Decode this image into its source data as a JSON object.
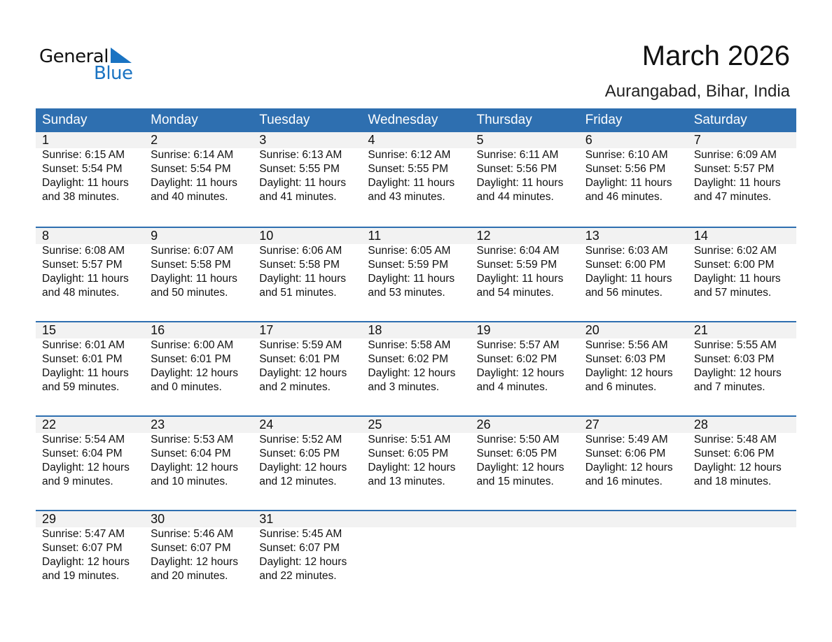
{
  "logo": {
    "general": "General",
    "blue": "Blue"
  },
  "header": {
    "title": "March 2026",
    "location": "Aurangabad, Bihar, India"
  },
  "colors": {
    "accent": "#2e6fb0",
    "band": "#f2f2f2"
  },
  "days": [
    "Sunday",
    "Monday",
    "Tuesday",
    "Wednesday",
    "Thursday",
    "Friday",
    "Saturday"
  ],
  "weeks": [
    [
      {
        "d": "1",
        "rise": "Sunrise: 6:15 AM",
        "set": "Sunset: 5:54 PM",
        "day1": "Daylight: 11 hours",
        "day2": "and 38 minutes."
      },
      {
        "d": "2",
        "rise": "Sunrise: 6:14 AM",
        "set": "Sunset: 5:54 PM",
        "day1": "Daylight: 11 hours",
        "day2": "and 40 minutes."
      },
      {
        "d": "3",
        "rise": "Sunrise: 6:13 AM",
        "set": "Sunset: 5:55 PM",
        "day1": "Daylight: 11 hours",
        "day2": "and 41 minutes."
      },
      {
        "d": "4",
        "rise": "Sunrise: 6:12 AM",
        "set": "Sunset: 5:55 PM",
        "day1": "Daylight: 11 hours",
        "day2": "and 43 minutes."
      },
      {
        "d": "5",
        "rise": "Sunrise: 6:11 AM",
        "set": "Sunset: 5:56 PM",
        "day1": "Daylight: 11 hours",
        "day2": "and 44 minutes."
      },
      {
        "d": "6",
        "rise": "Sunrise: 6:10 AM",
        "set": "Sunset: 5:56 PM",
        "day1": "Daylight: 11 hours",
        "day2": "and 46 minutes."
      },
      {
        "d": "7",
        "rise": "Sunrise: 6:09 AM",
        "set": "Sunset: 5:57 PM",
        "day1": "Daylight: 11 hours",
        "day2": "and 47 minutes."
      }
    ],
    [
      {
        "d": "8",
        "rise": "Sunrise: 6:08 AM",
        "set": "Sunset: 5:57 PM",
        "day1": "Daylight: 11 hours",
        "day2": "and 48 minutes."
      },
      {
        "d": "9",
        "rise": "Sunrise: 6:07 AM",
        "set": "Sunset: 5:58 PM",
        "day1": "Daylight: 11 hours",
        "day2": "and 50 minutes."
      },
      {
        "d": "10",
        "rise": "Sunrise: 6:06 AM",
        "set": "Sunset: 5:58 PM",
        "day1": "Daylight: 11 hours",
        "day2": "and 51 minutes."
      },
      {
        "d": "11",
        "rise": "Sunrise: 6:05 AM",
        "set": "Sunset: 5:59 PM",
        "day1": "Daylight: 11 hours",
        "day2": "and 53 minutes."
      },
      {
        "d": "12",
        "rise": "Sunrise: 6:04 AM",
        "set": "Sunset: 5:59 PM",
        "day1": "Daylight: 11 hours",
        "day2": "and 54 minutes."
      },
      {
        "d": "13",
        "rise": "Sunrise: 6:03 AM",
        "set": "Sunset: 6:00 PM",
        "day1": "Daylight: 11 hours",
        "day2": "and 56 minutes."
      },
      {
        "d": "14",
        "rise": "Sunrise: 6:02 AM",
        "set": "Sunset: 6:00 PM",
        "day1": "Daylight: 11 hours",
        "day2": "and 57 minutes."
      }
    ],
    [
      {
        "d": "15",
        "rise": "Sunrise: 6:01 AM",
        "set": "Sunset: 6:01 PM",
        "day1": "Daylight: 11 hours",
        "day2": "and 59 minutes."
      },
      {
        "d": "16",
        "rise": "Sunrise: 6:00 AM",
        "set": "Sunset: 6:01 PM",
        "day1": "Daylight: 12 hours",
        "day2": "and 0 minutes."
      },
      {
        "d": "17",
        "rise": "Sunrise: 5:59 AM",
        "set": "Sunset: 6:01 PM",
        "day1": "Daylight: 12 hours",
        "day2": "and 2 minutes."
      },
      {
        "d": "18",
        "rise": "Sunrise: 5:58 AM",
        "set": "Sunset: 6:02 PM",
        "day1": "Daylight: 12 hours",
        "day2": "and 3 minutes."
      },
      {
        "d": "19",
        "rise": "Sunrise: 5:57 AM",
        "set": "Sunset: 6:02 PM",
        "day1": "Daylight: 12 hours",
        "day2": "and 4 minutes."
      },
      {
        "d": "20",
        "rise": "Sunrise: 5:56 AM",
        "set": "Sunset: 6:03 PM",
        "day1": "Daylight: 12 hours",
        "day2": "and 6 minutes."
      },
      {
        "d": "21",
        "rise": "Sunrise: 5:55 AM",
        "set": "Sunset: 6:03 PM",
        "day1": "Daylight: 12 hours",
        "day2": "and 7 minutes."
      }
    ],
    [
      {
        "d": "22",
        "rise": "Sunrise: 5:54 AM",
        "set": "Sunset: 6:04 PM",
        "day1": "Daylight: 12 hours",
        "day2": "and 9 minutes."
      },
      {
        "d": "23",
        "rise": "Sunrise: 5:53 AM",
        "set": "Sunset: 6:04 PM",
        "day1": "Daylight: 12 hours",
        "day2": "and 10 minutes."
      },
      {
        "d": "24",
        "rise": "Sunrise: 5:52 AM",
        "set": "Sunset: 6:05 PM",
        "day1": "Daylight: 12 hours",
        "day2": "and 12 minutes."
      },
      {
        "d": "25",
        "rise": "Sunrise: 5:51 AM",
        "set": "Sunset: 6:05 PM",
        "day1": "Daylight: 12 hours",
        "day2": "and 13 minutes."
      },
      {
        "d": "26",
        "rise": "Sunrise: 5:50 AM",
        "set": "Sunset: 6:05 PM",
        "day1": "Daylight: 12 hours",
        "day2": "and 15 minutes."
      },
      {
        "d": "27",
        "rise": "Sunrise: 5:49 AM",
        "set": "Sunset: 6:06 PM",
        "day1": "Daylight: 12 hours",
        "day2": "and 16 minutes."
      },
      {
        "d": "28",
        "rise": "Sunrise: 5:48 AM",
        "set": "Sunset: 6:06 PM",
        "day1": "Daylight: 12 hours",
        "day2": "and 18 minutes."
      }
    ],
    [
      {
        "d": "29",
        "rise": "Sunrise: 5:47 AM",
        "set": "Sunset: 6:07 PM",
        "day1": "Daylight: 12 hours",
        "day2": "and 19 minutes."
      },
      {
        "d": "30",
        "rise": "Sunrise: 5:46 AM",
        "set": "Sunset: 6:07 PM",
        "day1": "Daylight: 12 hours",
        "day2": "and 20 minutes."
      },
      {
        "d": "31",
        "rise": "Sunrise: 5:45 AM",
        "set": "Sunset: 6:07 PM",
        "day1": "Daylight: 12 hours",
        "day2": "and 22 minutes."
      }
    ]
  ]
}
